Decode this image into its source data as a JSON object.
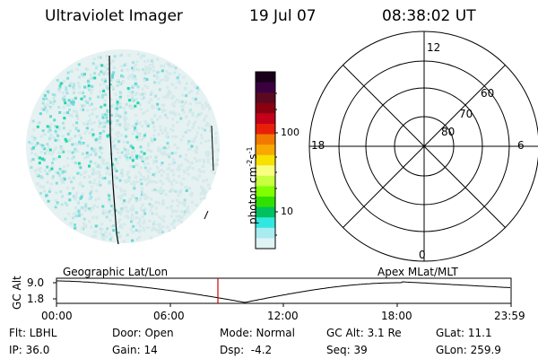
{
  "header": {
    "instrument": "Ultraviolet Imager",
    "date": "19 Jul 07",
    "time": "08:38:02 UT"
  },
  "colorbar": {
    "unit_label": "photon cm",
    "unit_exp1": "-2",
    "unit_mid": "s",
    "unit_exp2": "-1",
    "ticks": [
      "100",
      "10"
    ],
    "colors": [
      "#1a0018",
      "#3a0040",
      "#5a0a20",
      "#8a0010",
      "#c4001a",
      "#e8200a",
      "#f07a00",
      "#f8a800",
      "#f8e000",
      "#f8ff80",
      "#c8ff40",
      "#80ff00",
      "#30e000",
      "#00c060",
      "#30e8e0",
      "#a8ecf0",
      "#dff2f4"
    ]
  },
  "polar_grid": {
    "mlt_labels": [
      "12",
      "18",
      "6",
      "0"
    ],
    "lat_labels": [
      "60",
      "70",
      "80"
    ]
  },
  "timeline": {
    "axis_label": "GC Alt",
    "y_ticks": [
      "9.0",
      "1.8"
    ],
    "left_title": "Geographic Lat/Lon",
    "right_title": "Apex MLat/MLT",
    "x_ticks": [
      "00:00",
      "06:00",
      "12:00",
      "18:00",
      "23:59"
    ],
    "marker_color": "#d00000"
  },
  "info": {
    "row1": {
      "flt": "Flt: LBHL",
      "door": "Door: Open",
      "mode": "Mode: Normal",
      "gc_alt": "GC Alt: 3.1 Re",
      "glat": "GLat: 11.1"
    },
    "row2": {
      "ip": "IP: 36.0",
      "gain": "Gain: 14",
      "dsp": "Dsp:  -4.2",
      "seq": "Seq: 39",
      "glon": "GLon: 259.9"
    }
  }
}
